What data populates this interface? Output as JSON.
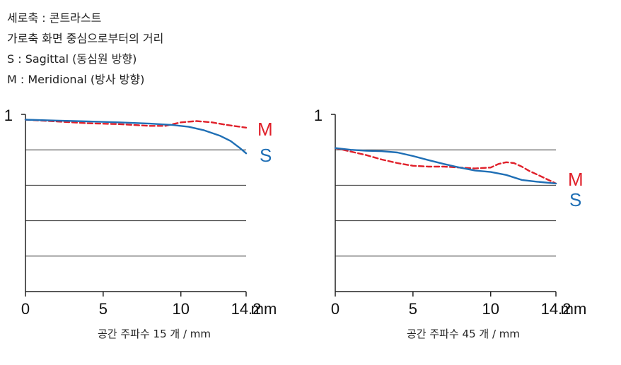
{
  "legend": {
    "lines": [
      "세로축 : 콘트라스트",
      "가로축 화면 중심으로부터의 거리",
      "S : Sagittal (동심원 방향)",
      "M : Meridional (방사 방향)"
    ]
  },
  "colors": {
    "S": "#1f6fb5",
    "M": "#e0202a",
    "grid": "#333333"
  },
  "chart_data": [
    {
      "type": "line",
      "caption": "공간 주파수 15 개 / mm",
      "x_ticks": [
        "0",
        "5",
        "10",
        "14.2"
      ],
      "x_unit": "mm",
      "y_tick": "1",
      "xlim": [
        0,
        14.2
      ],
      "ylim": [
        0,
        1
      ],
      "grid_y": [
        0.2,
        0.4,
        0.6,
        0.8
      ],
      "grid": true,
      "series": [
        {
          "name": "S",
          "x": [
            0,
            2,
            4,
            6,
            8,
            9.5,
            10.5,
            11.5,
            12.5,
            13.2,
            13.8,
            14.2
          ],
          "y": [
            0.97,
            0.965,
            0.96,
            0.955,
            0.948,
            0.94,
            0.93,
            0.91,
            0.88,
            0.85,
            0.81,
            0.78
          ]
        },
        {
          "name": "M",
          "x": [
            0,
            2,
            4,
            6,
            8,
            9,
            10,
            11,
            12,
            13,
            14.2
          ],
          "y": [
            0.97,
            0.96,
            0.95,
            0.945,
            0.935,
            0.935,
            0.955,
            0.962,
            0.955,
            0.94,
            0.925
          ]
        }
      ]
    },
    {
      "type": "line",
      "caption": "공간 주파수 45 개 / mm",
      "x_ticks": [
        "0",
        "5",
        "10",
        "14.2"
      ],
      "x_unit": "mm",
      "y_tick": "1",
      "xlim": [
        0,
        14.2
      ],
      "ylim": [
        0,
        1
      ],
      "grid_y": [
        0.2,
        0.4,
        0.6,
        0.8
      ],
      "grid": true,
      "series": [
        {
          "name": "S",
          "x": [
            0,
            1,
            2,
            3,
            4,
            5,
            6,
            7,
            8,
            9,
            10,
            11,
            12,
            13,
            14.2
          ],
          "y": [
            0.81,
            0.8,
            0.795,
            0.792,
            0.785,
            0.765,
            0.742,
            0.72,
            0.7,
            0.683,
            0.675,
            0.658,
            0.63,
            0.62,
            0.61
          ]
        },
        {
          "name": "M",
          "x": [
            0,
            1,
            2,
            3,
            4,
            5,
            6,
            7,
            8,
            9,
            10,
            10.5,
            11,
            11.5,
            12,
            12.5,
            13,
            14.2
          ],
          "y": [
            0.81,
            0.79,
            0.77,
            0.745,
            0.725,
            0.71,
            0.705,
            0.705,
            0.7,
            0.695,
            0.7,
            0.72,
            0.73,
            0.725,
            0.705,
            0.68,
            0.66,
            0.61
          ]
        }
      ]
    }
  ]
}
